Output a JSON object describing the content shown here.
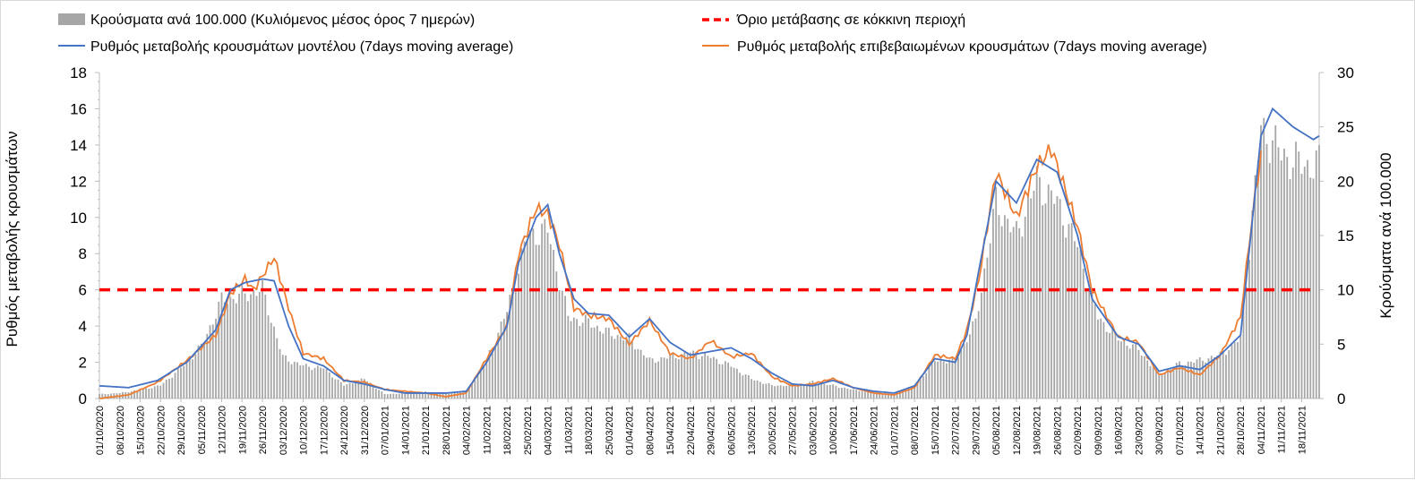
{
  "chart_data": {
    "type": "bar+line",
    "start_date": "01/10/2020",
    "end_date": "23/11/2021",
    "legend": {
      "bars": "Κρούσματα ανά 100.000 (Κυλιόμενος μέσος όρος 7 ημερών)",
      "threshold": "Όριο μετάβασης σε κόκκινη περιοχή",
      "model": "Ρυθμός μεταβολής κρουσμάτων μοντέλου (7days moving average)",
      "confirmed": "Ρυθμός μεταβολής επιβεβαιωμένων κρουσμάτων (7days moving average)"
    },
    "y_left": {
      "label": "Ρυθμός μεταβολής κρουσμάτων",
      "min": 0,
      "max": 18,
      "ticks": [
        0,
        2,
        4,
        6,
        8,
        10,
        12,
        14,
        16,
        18
      ]
    },
    "y_right": {
      "label": "Κρούσματα ανά 100.000",
      "min": 0,
      "max": 30,
      "ticks": [
        0,
        5,
        10,
        15,
        20,
        25,
        30
      ]
    },
    "x_tick_labels": [
      "01/10/2020",
      "08/10/2020",
      "15/10/2020",
      "22/10/2020",
      "29/10/2020",
      "05/11/2020",
      "12/11/2020",
      "19/11/2020",
      "26/11/2020",
      "03/12/2020",
      "10/12/2020",
      "17/12/2020",
      "24/12/2020",
      "31/12/2020",
      "07/01/2021",
      "14/01/2021",
      "21/01/2021",
      "28/01/2021",
      "04/02/2021",
      "11/02/2021",
      "18/02/2021",
      "25/02/2021",
      "04/03/2021",
      "11/03/2021",
      "18/03/2021",
      "25/03/2021",
      "01/04/2021",
      "08/04/2021",
      "15/04/2021",
      "22/04/2021",
      "29/04/2021",
      "06/05/2021",
      "13/05/2021",
      "20/05/2021",
      "27/05/2021",
      "03/06/2021",
      "10/06/2021",
      "17/06/2021",
      "24/06/2021",
      "01/07/2021",
      "08/07/2021",
      "15/07/2021",
      "22/07/2021",
      "29/07/2021",
      "05/08/2021",
      "12/08/2021",
      "19/08/2021",
      "26/08/2021",
      "02/09/2021",
      "09/09/2021",
      "16/09/2021",
      "23/09/2021",
      "30/09/2021",
      "07/10/2021",
      "14/10/2021",
      "21/10/2021",
      "28/10/2021",
      "04/11/2021",
      "11/11/2021",
      "18/11/2021"
    ],
    "threshold_value": 6,
    "colors": {
      "bars": "#a6a6a6",
      "threshold": "#ff0000",
      "model": "#4472c4",
      "confirmed": "#ed7d31",
      "axis": "#bfbfbf"
    },
    "series_days_anchors": {
      "bars_cases_per_100k": [
        [
          0,
          0.4
        ],
        [
          7,
          0.5
        ],
        [
          14,
          0.8
        ],
        [
          21,
          1.2
        ],
        [
          28,
          2.8
        ],
        [
          35,
          4.8
        ],
        [
          42,
          9.0
        ],
        [
          49,
          9.5
        ],
        [
          56,
          10.0
        ],
        [
          63,
          3.8
        ],
        [
          70,
          3.0
        ],
        [
          77,
          2.8
        ],
        [
          84,
          1.2
        ],
        [
          91,
          1.8
        ],
        [
          98,
          0.4
        ],
        [
          105,
          0.5
        ],
        [
          112,
          0.6
        ],
        [
          119,
          0.5
        ],
        [
          126,
          0.6
        ],
        [
          133,
          3.5
        ],
        [
          140,
          8.0
        ],
        [
          147,
          15.0
        ],
        [
          154,
          15.5
        ],
        [
          161,
          7.5
        ],
        [
          168,
          7.0
        ],
        [
          175,
          6.0
        ],
        [
          182,
          5.5
        ],
        [
          189,
          3.5
        ],
        [
          196,
          3.8
        ],
        [
          203,
          4.2
        ],
        [
          210,
          3.8
        ],
        [
          217,
          3.0
        ],
        [
          224,
          1.8
        ],
        [
          231,
          1.2
        ],
        [
          238,
          1.2
        ],
        [
          245,
          1.5
        ],
        [
          252,
          1.2
        ],
        [
          259,
          0.8
        ],
        [
          266,
          0.6
        ],
        [
          273,
          0.4
        ],
        [
          280,
          1.2
        ],
        [
          287,
          3.5
        ],
        [
          294,
          3.5
        ],
        [
          301,
          7.0
        ],
        [
          308,
          18.0
        ],
        [
          315,
          15.0
        ],
        [
          322,
          20.0
        ],
        [
          329,
          18.0
        ],
        [
          336,
          14.0
        ],
        [
          343,
          7.5
        ],
        [
          350,
          5.5
        ],
        [
          357,
          4.5
        ],
        [
          364,
          2.2
        ],
        [
          371,
          3.2
        ],
        [
          378,
          3.5
        ],
        [
          385,
          4.0
        ],
        [
          392,
          5.5
        ],
        [
          399,
          25.0
        ],
        [
          406,
          22.5
        ],
        [
          413,
          21.5
        ],
        [
          419,
          21.5
        ]
      ],
      "model_rate": [
        [
          0,
          0.7
        ],
        [
          10,
          0.6
        ],
        [
          20,
          1.0
        ],
        [
          30,
          2.0
        ],
        [
          40,
          3.8
        ],
        [
          45,
          6.0
        ],
        [
          50,
          6.4
        ],
        [
          56,
          6.6
        ],
        [
          60,
          6.5
        ],
        [
          65,
          4.0
        ],
        [
          70,
          2.2
        ],
        [
          77,
          1.8
        ],
        [
          84,
          1.0
        ],
        [
          91,
          0.8
        ],
        [
          98,
          0.5
        ],
        [
          105,
          0.3
        ],
        [
          112,
          0.3
        ],
        [
          119,
          0.3
        ],
        [
          126,
          0.4
        ],
        [
          133,
          2.0
        ],
        [
          140,
          4.0
        ],
        [
          144,
          7.5
        ],
        [
          150,
          10.0
        ],
        [
          154,
          10.7
        ],
        [
          158,
          8.0
        ],
        [
          163,
          5.5
        ],
        [
          168,
          4.7
        ],
        [
          175,
          4.6
        ],
        [
          182,
          3.4
        ],
        [
          189,
          4.4
        ],
        [
          196,
          3.1
        ],
        [
          203,
          2.4
        ],
        [
          210,
          2.6
        ],
        [
          217,
          2.8
        ],
        [
          224,
          2.2
        ],
        [
          231,
          1.4
        ],
        [
          238,
          0.8
        ],
        [
          245,
          0.7
        ],
        [
          252,
          1.0
        ],
        [
          259,
          0.6
        ],
        [
          266,
          0.4
        ],
        [
          273,
          0.3
        ],
        [
          280,
          0.7
        ],
        [
          287,
          2.2
        ],
        [
          294,
          2.0
        ],
        [
          298,
          3.5
        ],
        [
          302,
          7.0
        ],
        [
          308,
          12.0
        ],
        [
          315,
          10.8
        ],
        [
          322,
          13.2
        ],
        [
          329,
          12.5
        ],
        [
          336,
          9.0
        ],
        [
          341,
          5.5
        ],
        [
          350,
          3.4
        ],
        [
          357,
          3.0
        ],
        [
          364,
          1.5
        ],
        [
          371,
          1.8
        ],
        [
          378,
          1.6
        ],
        [
          385,
          2.4
        ],
        [
          392,
          3.5
        ],
        [
          399,
          14.5
        ],
        [
          403,
          16.0
        ],
        [
          410,
          15.0
        ],
        [
          417,
          14.3
        ],
        [
          419,
          14.5
        ]
      ],
      "confirmed_rate": [
        [
          0,
          0.0
        ],
        [
          10,
          0.2
        ],
        [
          20,
          0.9
        ],
        [
          30,
          2.1
        ],
        [
          40,
          3.5
        ],
        [
          45,
          5.8
        ],
        [
          50,
          6.6
        ],
        [
          53,
          6.0
        ],
        [
          60,
          7.8
        ],
        [
          65,
          5.0
        ],
        [
          70,
          2.5
        ],
        [
          77,
          2.2
        ],
        [
          84,
          1.0
        ],
        [
          91,
          0.9
        ],
        [
          98,
          0.5
        ],
        [
          105,
          0.4
        ],
        [
          112,
          0.3
        ],
        [
          119,
          0.1
        ],
        [
          126,
          0.3
        ],
        [
          133,
          2.2
        ],
        [
          140,
          4.0
        ],
        [
          144,
          8.0
        ],
        [
          150,
          10.5
        ],
        [
          154,
          10.2
        ],
        [
          158,
          8.5
        ],
        [
          163,
          5.0
        ],
        [
          168,
          4.6
        ],
        [
          175,
          4.4
        ],
        [
          182,
          3.0
        ],
        [
          189,
          4.3
        ],
        [
          196,
          2.5
        ],
        [
          203,
          2.2
        ],
        [
          210,
          3.2
        ],
        [
          217,
          2.3
        ],
        [
          224,
          2.5
        ],
        [
          231,
          1.2
        ],
        [
          238,
          0.7
        ],
        [
          245,
          0.8
        ],
        [
          252,
          1.1
        ],
        [
          259,
          0.6
        ],
        [
          266,
          0.3
        ],
        [
          273,
          0.2
        ],
        [
          280,
          0.6
        ],
        [
          287,
          2.4
        ],
        [
          294,
          2.2
        ],
        [
          298,
          3.8
        ],
        [
          302,
          6.5
        ],
        [
          308,
          12.5
        ],
        [
          315,
          10.0
        ],
        [
          322,
          12.8
        ],
        [
          327,
          13.8
        ],
        [
          336,
          9.5
        ],
        [
          341,
          6.0
        ],
        [
          350,
          3.4
        ],
        [
          357,
          3.1
        ],
        [
          364,
          1.3
        ],
        [
          371,
          1.7
        ],
        [
          378,
          1.3
        ],
        [
          385,
          2.4
        ],
        [
          392,
          4.5
        ],
        [
          396,
          10.0
        ],
        [
          399,
          13.5
        ]
      ]
    }
  }
}
